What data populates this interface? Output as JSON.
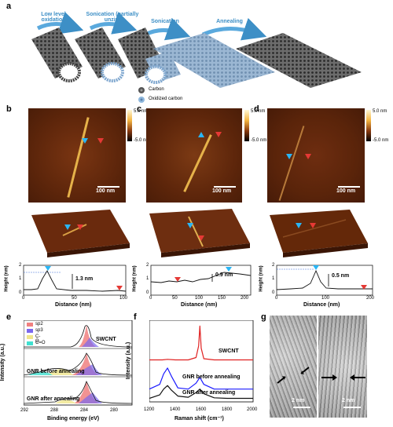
{
  "panels": {
    "a": "a",
    "b": "b",
    "c": "c",
    "d": "d",
    "e": "e",
    "f": "f",
    "g": "g"
  },
  "schematic": {
    "steps": [
      "Low level oxidation",
      "Sonication (partially unzip)",
      "Sonication",
      "Annealing"
    ],
    "legend": [
      {
        "label": "Carbon",
        "color": "#555555"
      },
      {
        "label": "Oxidized carbon",
        "color": "#8fb8dd"
      }
    ]
  },
  "afm": {
    "scale_bar": "100 nm",
    "colorbar_top": "5.0 nm",
    "colorbar_bottom": "-5.0 nm",
    "profiles": [
      {
        "panel": "b",
        "height_label": "1.3 nm",
        "xlabel": "Distance (nm)",
        "ylabel": "Height (nm)",
        "xticks": [
          "0",
          "50",
          "100"
        ],
        "yticks": [
          "0",
          "1",
          "2"
        ]
      },
      {
        "panel": "c",
        "height_label": "0.9 nm",
        "xlabel": "Distance (nm)",
        "ylabel": "Height (nm)",
        "xticks": [
          "0",
          "50",
          "100",
          "150",
          "200"
        ],
        "yticks": [
          "0",
          "1",
          "2"
        ]
      },
      {
        "panel": "d",
        "height_label": "0.5 nm",
        "xlabel": "Distance (nm)",
        "ylabel": "Height (nm)",
        "xticks": [
          "0",
          "100",
          "200"
        ],
        "yticks": [
          "0",
          "1",
          "2"
        ]
      }
    ]
  },
  "xps": {
    "ylabel": "Intensity (a.u.)",
    "xlabel": "Binding energy (eV)",
    "xticks": [
      "292",
      "288",
      "284",
      "280"
    ],
    "legend": [
      {
        "label": "sp2",
        "color": "#f08080"
      },
      {
        "label": "sp3",
        "color": "#7b68ee"
      },
      {
        "label": "C-O",
        "color": "#f0e68c"
      },
      {
        "label": "C=O",
        "color": "#40e0d0"
      }
    ],
    "traces": [
      "SWCNT",
      "GNR before annealing",
      "GNR after annealing"
    ]
  },
  "raman": {
    "ylabel": "Intensity (a.u.)",
    "xlabel": "Raman shift (cm⁻¹)",
    "xticks": [
      "1200",
      "1400",
      "1600",
      "1800",
      "2000"
    ],
    "traces": [
      {
        "label": "SWCNT",
        "color": "#e02020"
      },
      {
        "label": "GNR before annealing",
        "color": "#1a1aff"
      },
      {
        "label": "GNR after annealing",
        "color": "#111111"
      }
    ]
  },
  "tem": {
    "scale_bars": [
      "2 nm",
      "2 nm"
    ]
  },
  "chart_data": [
    {
      "type": "line",
      "panel": "f",
      "xlabel": "Raman shift (cm⁻¹)",
      "ylabel": "Intensity (a.u.)",
      "xlim": [
        1200,
        2000
      ],
      "series": [
        {
          "name": "SWCNT",
          "x": [
            1200,
            1300,
            1340,
            1400,
            1500,
            1560,
            1580,
            1590,
            1600,
            1620,
            1700,
            1800,
            2000
          ],
          "y": [
            3.4,
            3.4,
            3.45,
            3.4,
            3.4,
            3.6,
            4.6,
            6.3,
            4.4,
            3.5,
            3.4,
            3.4,
            3.4
          ]
        },
        {
          "name": "GNR before annealing",
          "x": [
            1200,
            1280,
            1310,
            1340,
            1370,
            1420,
            1500,
            1560,
            1590,
            1620,
            1700,
            1800,
            2000
          ],
          "y": [
            0.9,
            1.3,
            2.2,
            2.7,
            2.0,
            1.0,
            0.9,
            1.4,
            1.9,
            1.3,
            0.9,
            0.9,
            0.9
          ]
        },
        {
          "name": "GNR after annealing",
          "x": [
            1200,
            1280,
            1310,
            1340,
            1370,
            1420,
            1500,
            1560,
            1590,
            1620,
            1700,
            1800,
            2000
          ],
          "y": [
            0.1,
            0.4,
            0.9,
            1.2,
            0.8,
            0.3,
            0.2,
            0.6,
            0.9,
            0.5,
            0.15,
            0.1,
            0.1
          ]
        }
      ]
    }
  ]
}
